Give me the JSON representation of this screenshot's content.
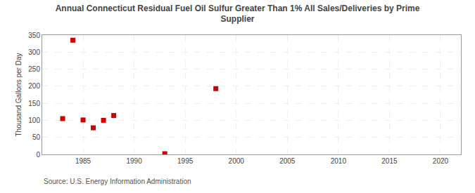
{
  "chart_data": {
    "type": "scatter",
    "title": "Annual Connecticut Residual Fuel Oil Sulfur Greater Than 1% All Sales/Deliveries by Prime\nSupplier",
    "ylabel": "Thousand Gallons per Day",
    "annotations": [
      "Source: U.S. Energy Information Administration"
    ],
    "x": [
      1983,
      1984,
      1985,
      1986,
      1987,
      1988,
      1993,
      1998
    ],
    "values": [
      105,
      335,
      101,
      78,
      100,
      114,
      2,
      193
    ],
    "color": "#cc0000",
    "marker": "square",
    "xlim": [
      1981,
      2022
    ],
    "ylim": [
      0,
      350
    ],
    "xticks": [
      1985,
      1990,
      1995,
      2000,
      2005,
      2010,
      2015,
      2020
    ],
    "yticks": [
      0,
      50,
      100,
      150,
      200,
      250,
      300,
      350
    ],
    "grid": true
  }
}
